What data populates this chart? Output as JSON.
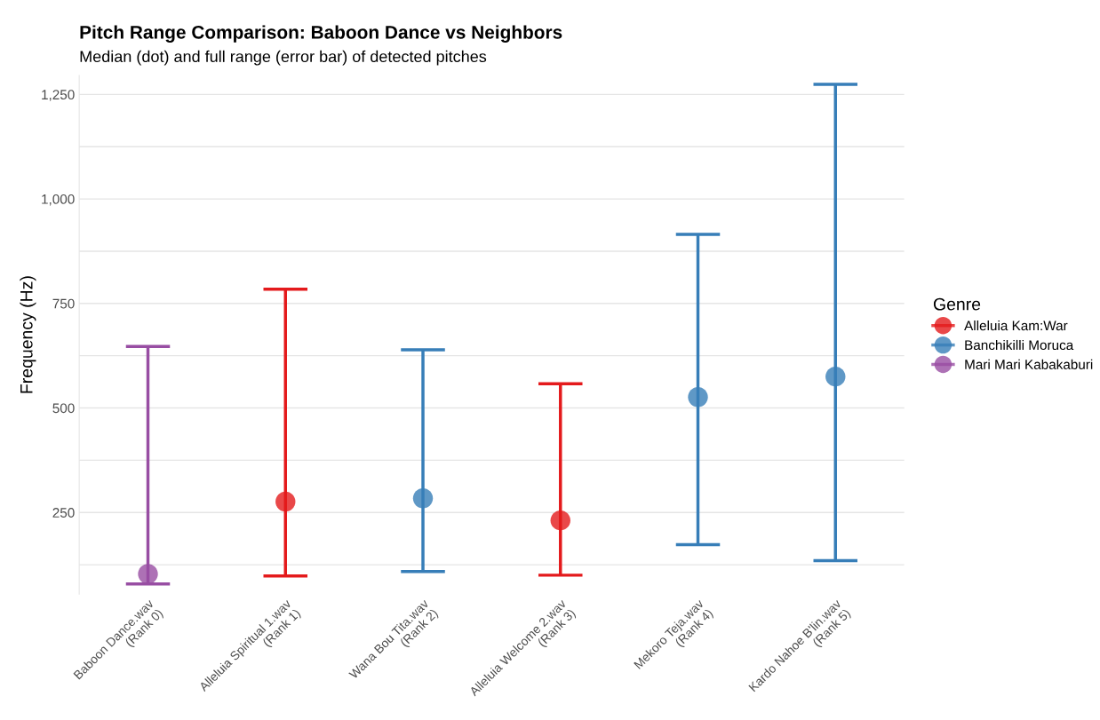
{
  "chart_data": {
    "type": "scatter",
    "title": "Pitch Range Comparison: Baboon Dance vs Neighbors",
    "subtitle": "Median (dot) and full range (error bar) of detected pitches",
    "ylabel": "Frequency (Hz)",
    "legend_title": "Genre",
    "categories": [
      "Baboon Dance.wav\n(Rank 0)",
      "Alleluia Spiritual 1.wav\n(Rank 1)",
      "Wana Bou Tita.wav\n(Rank 2)",
      "Alleluia Welcome 2.wav\n(Rank 3)",
      "Mekoro Teja.wav\n(Rank 4)",
      "Kardo Nahoe B'lin.wav\n(Rank 5)"
    ],
    "series": [
      {
        "name": "Alleluia Kam:War",
        "color": "#e41a1c",
        "values": [
          null,
          276,
          null,
          231,
          null,
          null
        ],
        "errors": [
          null,
          [
            98,
            784
          ],
          null,
          [
            100,
            558
          ],
          null,
          null
        ]
      },
      {
        "name": "Banchikilli Moruca",
        "color": "#377eb8",
        "values": [
          null,
          null,
          284,
          null,
          526,
          575
        ],
        "errors": [
          null,
          null,
          [
            109,
            639
          ],
          null,
          [
            173,
            915
          ],
          [
            135,
            1274
          ]
        ]
      },
      {
        "name": "Mari Mari Kabakaburi",
        "color": "#984ea3",
        "values": [
          103,
          null,
          null,
          null,
          null,
          null
        ],
        "errors": [
          [
            79,
            647
          ],
          null,
          null,
          null,
          null,
          null
        ]
      }
    ],
    "ylim": [
      55,
      1295
    ],
    "yticks": [
      {
        "value": 125,
        "label": null
      },
      {
        "value": 250,
        "label": "250"
      },
      {
        "value": 375,
        "label": null
      },
      {
        "value": 500,
        "label": "500"
      },
      {
        "value": 625,
        "label": null
      },
      {
        "value": 750,
        "label": "750"
      },
      {
        "value": 875,
        "label": null
      },
      {
        "value": 1000,
        "label": "1,000"
      },
      {
        "value": 1125,
        "label": null
      },
      {
        "value": 1250,
        "label": "1,250"
      }
    ],
    "grid": "y",
    "legend": "right",
    "marker": "circle"
  }
}
